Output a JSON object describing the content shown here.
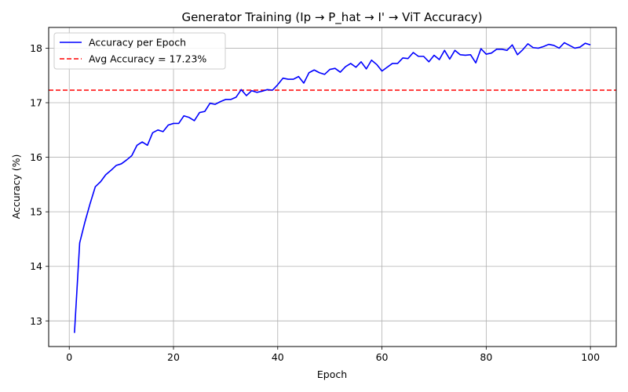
{
  "chart_data": {
    "type": "line",
    "title": "Generator Training (Ip → P_hat → I' → ViT Accuracy)",
    "xlabel": "Epoch",
    "ylabel": "Accuracy (%)",
    "xlim": [
      -3.95,
      104.95
    ],
    "ylim": [
      12.53,
      18.38
    ],
    "xticks": [
      0,
      20,
      40,
      60,
      80,
      100
    ],
    "yticks": [
      13,
      14,
      15,
      16,
      17,
      18
    ],
    "grid": true,
    "legend_position": "top-left",
    "series": [
      {
        "name": "Accuracy per Epoch",
        "color": "#0000ff",
        "style": "solid",
        "x": [
          1,
          2,
          3,
          4,
          5,
          6,
          7,
          8,
          9,
          10,
          11,
          12,
          13,
          14,
          15,
          16,
          17,
          18,
          19,
          20,
          21,
          22,
          23,
          24,
          25,
          26,
          27,
          28,
          29,
          30,
          31,
          32,
          33,
          34,
          35,
          36,
          37,
          38,
          39,
          40,
          41,
          42,
          43,
          44,
          45,
          46,
          47,
          48,
          49,
          50,
          51,
          52,
          53,
          54,
          55,
          56,
          57,
          58,
          59,
          60,
          61,
          62,
          63,
          64,
          65,
          66,
          67,
          68,
          69,
          70,
          71,
          72,
          73,
          74,
          75,
          76,
          77,
          78,
          79,
          80,
          81,
          82,
          83,
          84,
          85,
          86,
          87,
          88,
          89,
          90,
          91,
          92,
          93,
          94,
          95,
          96,
          97,
          98,
          99,
          100
        ],
        "values": [
          12.78,
          14.43,
          14.81,
          15.15,
          15.46,
          15.55,
          15.68,
          15.76,
          15.85,
          15.88,
          15.95,
          16.03,
          16.22,
          16.28,
          16.22,
          16.45,
          16.5,
          16.47,
          16.59,
          16.62,
          16.62,
          16.76,
          16.73,
          16.67,
          16.82,
          16.84,
          16.99,
          16.97,
          17.02,
          17.06,
          17.06,
          17.1,
          17.24,
          17.13,
          17.22,
          17.19,
          17.21,
          17.24,
          17.23,
          17.33,
          17.45,
          17.43,
          17.43,
          17.48,
          17.36,
          17.55,
          17.6,
          17.55,
          17.52,
          17.61,
          17.63,
          17.56,
          17.66,
          17.72,
          17.65,
          17.75,
          17.62,
          17.78,
          17.7,
          17.58,
          17.65,
          17.72,
          17.72,
          17.82,
          17.81,
          17.92,
          17.85,
          17.85,
          17.75,
          17.87,
          17.79,
          17.96,
          17.8,
          17.96,
          17.88,
          17.87,
          17.88,
          17.73,
          17.99,
          17.89,
          17.91,
          17.98,
          17.98,
          17.96,
          18.06,
          17.88,
          17.97,
          18.08,
          18.01,
          18.0,
          18.03,
          18.07,
          18.05,
          18.0,
          18.1,
          18.05,
          18.0,
          18.02,
          18.09,
          18.06
        ]
      },
      {
        "name": "Avg Accuracy = 17.23%",
        "color": "#ff0000",
        "style": "dashed",
        "type": "hline",
        "y": 17.23
      }
    ]
  }
}
